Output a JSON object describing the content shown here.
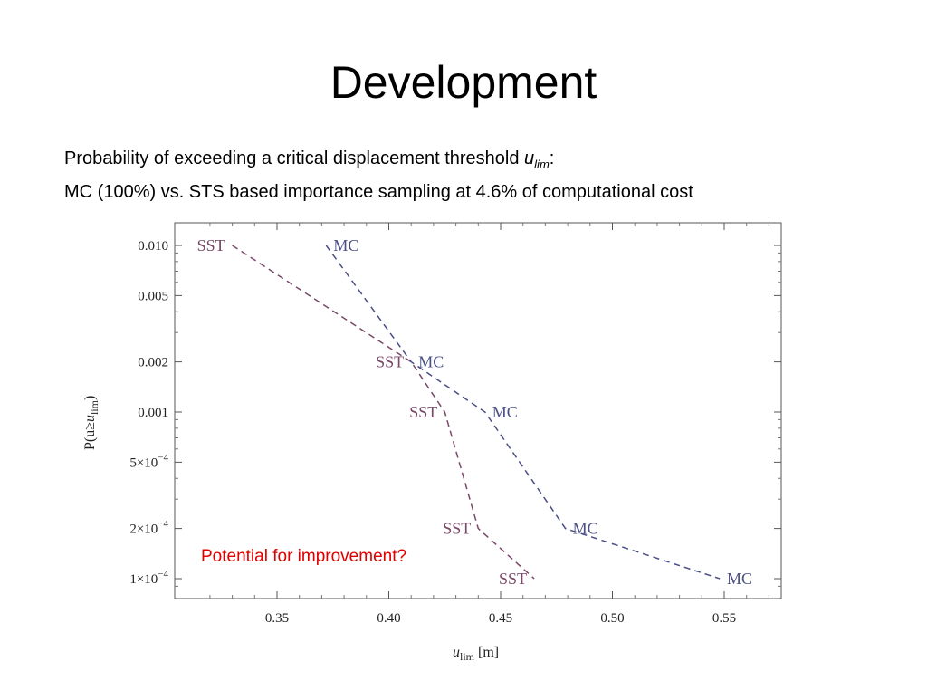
{
  "slide": {
    "title": "Development",
    "subtitle_line1_pre": "Probability of exceeding a critical displacement threshold ",
    "subtitle_line1_var": "u",
    "subtitle_line1_sub": "lim",
    "subtitle_line1_post": ":",
    "subtitle_line2": "MC (100%) vs. STS based importance sampling at 4.6% of computational cost"
  },
  "chart_data": {
    "type": "line",
    "xlabel_main": "u",
    "xlabel_sub": "lim",
    "xlabel_unit": " [m]",
    "ylabel_pre": "P(u≥",
    "ylabel_var": "u",
    "ylabel_sub": "lim",
    "ylabel_post": ")",
    "xlim": [
      0.31,
      0.575
    ],
    "ylim": [
      8e-05,
      0.0125
    ],
    "y_scale": "log",
    "x_ticks": [
      {
        "value": 0.35,
        "label": "0.35"
      },
      {
        "value": 0.4,
        "label": "0.40"
      },
      {
        "value": 0.45,
        "label": "0.45"
      },
      {
        "value": 0.5,
        "label": "0.50"
      },
      {
        "value": 0.55,
        "label": "0.55"
      }
    ],
    "y_ticks": [
      {
        "value": 0.01,
        "label": "0.010"
      },
      {
        "value": 0.005,
        "label": "0.005"
      },
      {
        "value": 0.002,
        "label": "0.002"
      },
      {
        "value": 0.001,
        "label": "0.001"
      },
      {
        "value": 0.0005,
        "mantissa": "5",
        "exponent": "−4"
      },
      {
        "value": 0.0002,
        "mantissa": "2",
        "exponent": "−4"
      },
      {
        "value": 0.0001,
        "mantissa": "1",
        "exponent": "−4"
      }
    ],
    "series": [
      {
        "name": "SST",
        "color": "#7a4868",
        "points": [
          {
            "x": 0.33,
            "y": 0.01,
            "label": "SST"
          },
          {
            "x": 0.41,
            "y": 0.002,
            "label": "SST"
          },
          {
            "x": 0.425,
            "y": 0.001,
            "label": "SST"
          },
          {
            "x": 0.44,
            "y": 0.0002,
            "label": "SST"
          },
          {
            "x": 0.465,
            "y": 0.0001,
            "label": "SST"
          }
        ]
      },
      {
        "name": "MC",
        "color": "#4a4f85",
        "points": [
          {
            "x": 0.372,
            "y": 0.01,
            "label": "MC"
          },
          {
            "x": 0.41,
            "y": 0.002,
            "label": "MC"
          },
          {
            "x": 0.443,
            "y": 0.001,
            "label": "MC"
          },
          {
            "x": 0.479,
            "y": 0.0002,
            "label": "MC"
          },
          {
            "x": 0.548,
            "y": 0.0001,
            "label": "MC"
          }
        ]
      }
    ],
    "annotation": {
      "text": "Potential for improvement?",
      "color": "#e00000"
    }
  }
}
